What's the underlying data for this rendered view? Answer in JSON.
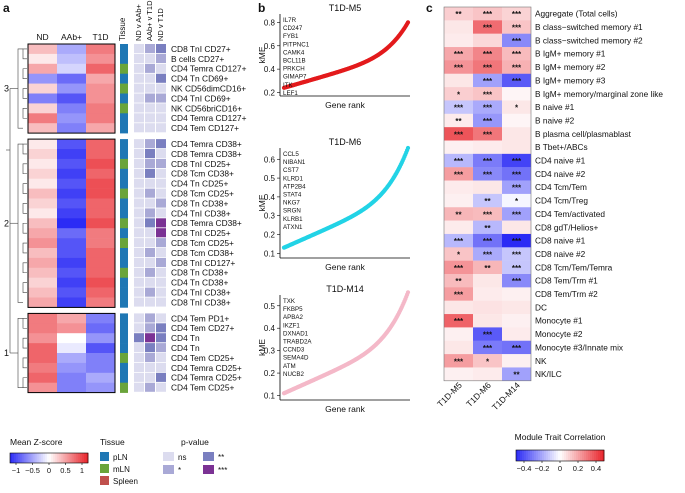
{
  "panel_labels": {
    "a": "a",
    "b": "b",
    "c": "c"
  },
  "colors": {
    "z_low": "#2b2bf5",
    "z_mid": "#ffffff",
    "z_high": "#e8232a",
    "tissue": {
      "pLN": "#1f77b4",
      "mLN": "#6aa43a",
      "Spleen": "#c0504d"
    },
    "pval": {
      "ns": "#dcdcef",
      "*": "#a9a9d6",
      "**": "#7a7fc0",
      "***": "#7b3294"
    },
    "kme": {
      "T1D-M5": "#e31a1c",
      "T1D-M6": "#22d3e6",
      "T1D-M14": "#f4b8c8"
    }
  },
  "panel_a": {
    "col_headers": [
      "ND",
      "AAb+",
      "T1D"
    ],
    "tissue_header": "Tissue",
    "pval_headers": [
      "ND v AAb+",
      "AAb+ v T1D",
      "ND v T1D"
    ],
    "clusters": [
      "3",
      "2",
      "1"
    ],
    "rows": [
      {
        "label": "CD8 TnI CD27+",
        "z": [
          0.3,
          -0.4,
          0.6
        ],
        "tissue": "pLN",
        "p": [
          "ns",
          "*",
          "**"
        ]
      },
      {
        "label": "B cells CD27+",
        "z": [
          0.1,
          -0.3,
          0.5
        ],
        "tissue": "pLN",
        "p": [
          "ns",
          "ns",
          "*"
        ]
      },
      {
        "label": "CD4 Temra CD127+",
        "z": [
          0.4,
          -0.2,
          0.7
        ],
        "tissue": "mLN",
        "p": [
          "ns",
          "*",
          "ns"
        ]
      },
      {
        "label": "CD4 Tn CD69+",
        "z": [
          -0.5,
          -0.7,
          0.4
        ],
        "tissue": "pLN",
        "p": [
          "ns",
          "ns",
          "**"
        ]
      },
      {
        "label": "NK CD56dimCD16+",
        "z": [
          0.2,
          -0.5,
          0.5
        ],
        "tissue": "mLN",
        "p": [
          "ns",
          "ns",
          "ns"
        ]
      },
      {
        "label": "CD4 TnI CD69+",
        "z": [
          -0.6,
          -0.8,
          0.5
        ],
        "tissue": "pLN",
        "p": [
          "ns",
          "*",
          "*"
        ]
      },
      {
        "label": "NK CD56briCD16+",
        "z": [
          0.2,
          -0.6,
          0.6
        ],
        "tissue": "mLN",
        "p": [
          "ns",
          "ns",
          "ns"
        ]
      },
      {
        "label": "CD4 Temra CD127+",
        "z": [
          0.6,
          -0.5,
          0.6
        ],
        "tissue": "pLN",
        "p": [
          "ns",
          "ns",
          "ns"
        ]
      },
      {
        "label": "CD4 Tem CD127+",
        "z": [
          0.3,
          -0.6,
          0.4
        ],
        "tissue": "pLN",
        "p": [
          "ns",
          "ns",
          "ns"
        ]
      },
      {
        "label": "CD4 Temra CD38+",
        "z": [
          0.1,
          -0.8,
          0.7
        ],
        "tissue": "pLN",
        "p": [
          "ns",
          "*",
          "**"
        ]
      },
      {
        "label": "CD8 Temra CD38+",
        "z": [
          0.2,
          -0.9,
          0.7
        ],
        "tissue": "pLN",
        "p": [
          "ns",
          "**",
          "ns"
        ]
      },
      {
        "label": "CD8 TnI CD25+",
        "z": [
          0.1,
          -0.8,
          0.8
        ],
        "tissue": "mLN",
        "p": [
          "ns",
          "*",
          "*"
        ]
      },
      {
        "label": "CD8 Tcm CD38+",
        "z": [
          0.2,
          -0.9,
          0.7
        ],
        "tissue": "pLN",
        "p": [
          "ns",
          "**",
          "ns"
        ]
      },
      {
        "label": "CD4 Tn CD25+",
        "z": [
          0.1,
          -0.8,
          0.8
        ],
        "tissue": "pLN",
        "p": [
          "ns",
          "ns",
          "ns"
        ]
      },
      {
        "label": "CD8 Tcm CD25+",
        "z": [
          0.3,
          -0.9,
          0.8
        ],
        "tissue": "mLN",
        "p": [
          "ns",
          "*",
          "ns"
        ]
      },
      {
        "label": "CD8 Tn CD38+",
        "z": [
          0.2,
          -0.8,
          0.7
        ],
        "tissue": "pLN",
        "p": [
          "ns",
          "ns",
          "*"
        ]
      },
      {
        "label": "CD4 TnI CD38+",
        "z": [
          0.1,
          -0.9,
          0.7
        ],
        "tissue": "pLN",
        "p": [
          "ns",
          "*",
          "ns"
        ]
      },
      {
        "label": "CD8 Temra CD38+",
        "z": [
          0.3,
          -1.0,
          0.8
        ],
        "tissue": "mLN",
        "p": [
          "ns",
          "**",
          "***"
        ]
      },
      {
        "label": "CD8 TnI CD25+",
        "z": [
          0.4,
          -0.7,
          0.6
        ],
        "tissue": "pLN",
        "p": [
          "ns",
          "ns",
          "***"
        ]
      },
      {
        "label": "CD8 Tcm CD25+",
        "z": [
          0.5,
          -0.8,
          0.6
        ],
        "tissue": "mLN",
        "p": [
          "ns",
          "ns",
          "*"
        ]
      },
      {
        "label": "CD8 Tcm CD38+",
        "z": [
          0.3,
          -0.8,
          0.7
        ],
        "tissue": "pLN",
        "p": [
          "ns",
          "*",
          "ns"
        ]
      },
      {
        "label": "CD8 TnI CD127+",
        "z": [
          0.4,
          -0.9,
          0.7
        ],
        "tissue": "pLN",
        "p": [
          "ns",
          "ns",
          "*"
        ]
      },
      {
        "label": "CD8 Tn CD38+",
        "z": [
          0.3,
          -0.8,
          0.7
        ],
        "tissue": "mLN",
        "p": [
          "ns",
          "*",
          "ns"
        ]
      },
      {
        "label": "CD4 Tn CD38+",
        "z": [
          0.2,
          -0.9,
          0.8
        ],
        "tissue": "pLN",
        "p": [
          "ns",
          "ns",
          "ns"
        ]
      },
      {
        "label": "CD4 TnI CD38+",
        "z": [
          0.3,
          -0.8,
          0.7
        ],
        "tissue": "pLN",
        "p": [
          "ns",
          "*",
          "ns"
        ]
      },
      {
        "label": "CD8 TnI CD38+",
        "z": [
          0.4,
          -0.9,
          0.6
        ],
        "tissue": "pLN",
        "p": [
          "ns",
          "ns",
          "ns"
        ]
      },
      {
        "label": "CD4 Tem PD1+",
        "z": [
          0.6,
          0.4,
          -0.6
        ],
        "tissue": "pLN",
        "p": [
          "ns",
          "*",
          "ns"
        ]
      },
      {
        "label": "CD4 Tem CD27+",
        "z": [
          0.6,
          0.5,
          -0.7
        ],
        "tissue": "pLN",
        "p": [
          "ns",
          "*",
          "**"
        ]
      },
      {
        "label": "CD4 Tn",
        "z": [
          0.5,
          0.0,
          -0.5
        ],
        "tissue": "pLN",
        "p": [
          "**",
          "***",
          "**"
        ]
      },
      {
        "label": "CD4 Tn",
        "z": [
          0.7,
          -0.1,
          -0.8
        ],
        "tissue": "pLN",
        "p": [
          "ns",
          "**",
          "*"
        ]
      },
      {
        "label": "CD4 Tem CD25+",
        "z": [
          0.7,
          -0.4,
          -0.6
        ],
        "tissue": "mLN",
        "p": [
          "ns",
          "*",
          "ns"
        ]
      },
      {
        "label": "CD4 Temra CD25+",
        "z": [
          0.6,
          -0.5,
          -0.6
        ],
        "tissue": "pLN",
        "p": [
          "ns",
          "ns",
          "ns"
        ]
      },
      {
        "label": "CD4 Temra CD25+",
        "z": [
          0.7,
          -0.6,
          -0.4
        ],
        "tissue": "pLN",
        "p": [
          "ns",
          "ns",
          "**"
        ]
      },
      {
        "label": "CD4 Tem CD25+",
        "z": [
          0.5,
          -0.6,
          -0.5
        ],
        "tissue": "mLN",
        "p": [
          "ns",
          "*",
          "ns"
        ]
      }
    ],
    "legend_z_title": "Mean Z-score",
    "legend_z_ticks": [
      "−1",
      "−0.5",
      "0",
      "0.5",
      "1"
    ],
    "legend_tissue_title": "Tissue",
    "legend_tissue": [
      "pLN",
      "mLN",
      "Spleen"
    ],
    "legend_p_title": "p-value",
    "legend_p": [
      "ns",
      "**",
      "*",
      "***"
    ]
  },
  "chart_data": [
    {
      "type": "scatter",
      "title": "T1D-M5",
      "xlabel": "Gene rank",
      "ylabel": "kME",
      "ylim": [
        0.2,
        0.8
      ],
      "yticks": [
        "0.2",
        "0.4",
        "0.6",
        "0.8"
      ],
      "n_points": 140,
      "curve": {
        "start": 0.24,
        "end": 0.8
      },
      "genes": [
        "IL7R",
        "CD247",
        "FYB1",
        "PITPNC1",
        "CAMK4",
        "BCL11B",
        "PRKCH",
        "GIMAP7",
        "ITK",
        "LEF1"
      ]
    },
    {
      "type": "scatter",
      "title": "T1D-M6",
      "xlabel": "Gene rank",
      "ylabel": "kME",
      "ylim": [
        0.1,
        0.6
      ],
      "yticks": [
        "0.1",
        "0.2",
        "0.3",
        "0.4",
        "0.5",
        "0.6"
      ],
      "n_points": 140,
      "curve": {
        "start": 0.13,
        "end": 0.66
      },
      "genes": [
        "CCL5",
        "NIBAN1",
        "CST7",
        "KLRD1",
        "ATP2B4",
        "STAT4",
        "NKG7",
        "SRGN",
        "KLRB1",
        "ATXN1"
      ]
    },
    {
      "type": "scatter",
      "title": "T1D-M14",
      "xlabel": "Gene rank",
      "ylabel": "kME",
      "ylim": [
        0.1,
        0.5
      ],
      "yticks": [
        "0.1",
        "0.2",
        "0.3",
        "0.4",
        "0.5"
      ],
      "n_points": 140,
      "curve": {
        "start": 0.11,
        "end": 0.56
      },
      "genes": [
        "TXK",
        "FKBP5",
        "APBA2",
        "IKZF1",
        "DXNAD1",
        "TRABD2A",
        "CCND3",
        "SEMA4D",
        "ATM",
        "NUCB2"
      ]
    },
    {
      "type": "heatmap",
      "title": "Module Trait Correlation",
      "columns": [
        "T1D-M5",
        "T1D-M6",
        "T1D-M14"
      ],
      "colorbar_ticks": [
        "−0.4",
        "−0.2",
        "0",
        "0.2",
        "0.4"
      ],
      "rows": [
        {
          "label": "Aggregate (Total cells)",
          "r": [
            0.1,
            0.12,
            0.09
          ],
          "sig": [
            "**",
            "***",
            "***"
          ]
        },
        {
          "label": "B class−switched memory #1",
          "r": [
            0.05,
            0.3,
            0.12
          ],
          "sig": [
            "",
            "***",
            "***"
          ]
        },
        {
          "label": "B class−switched memory #2",
          "r": [
            0.04,
            0.08,
            -0.25
          ],
          "sig": [
            "",
            "",
            "***"
          ]
        },
        {
          "label": "B IgM+ memory #1",
          "r": [
            0.18,
            0.25,
            0.14
          ],
          "sig": [
            "***",
            "***",
            "***"
          ]
        },
        {
          "label": "B IgM+ memory #2",
          "r": [
            0.22,
            0.28,
            0.16
          ],
          "sig": [
            "***",
            "***",
            "***"
          ]
        },
        {
          "label": "B IgM+ memory #3",
          "r": [
            0.05,
            -0.2,
            -0.35
          ],
          "sig": [
            "",
            "***",
            "***"
          ]
        },
        {
          "label": "B IgM+ memory/marginal zone like",
          "r": [
            0.1,
            0.12,
            0.02
          ],
          "sig": [
            "*",
            "***",
            ""
          ]
        },
        {
          "label": "B naive #1",
          "r": [
            -0.12,
            -0.18,
            0.05
          ],
          "sig": [
            "***",
            "***",
            "*"
          ]
        },
        {
          "label": "B naive #2",
          "r": [
            0.04,
            -0.22,
            0.02
          ],
          "sig": [
            "**",
            "***",
            ""
          ]
        },
        {
          "label": "B plasma cell/plasmablast",
          "r": [
            0.35,
            0.28,
            0.05
          ],
          "sig": [
            "***",
            "***",
            ""
          ]
        },
        {
          "label": "B Tbet+/ABCs",
          "r": [
            0.03,
            0.04,
            0.05
          ],
          "sig": [
            "",
            "",
            ""
          ]
        },
        {
          "label": "CD4 naive #1",
          "r": [
            -0.15,
            -0.28,
            -0.4
          ],
          "sig": [
            "***",
            "***",
            "***"
          ]
        },
        {
          "label": "CD4 naive #2",
          "r": [
            0.2,
            -0.25,
            -0.3
          ],
          "sig": [
            "***",
            "***",
            "***"
          ]
        },
        {
          "label": "CD4 Tcm/Tem",
          "r": [
            0.04,
            0.05,
            -0.2
          ],
          "sig": [
            "",
            "",
            "***"
          ]
        },
        {
          "label": "CD4 Tcm/Treg",
          "r": [
            0.03,
            -0.12,
            -0.02
          ],
          "sig": [
            "",
            "**",
            "*"
          ]
        },
        {
          "label": "CD4 Tem/activated",
          "r": [
            0.15,
            0.14,
            -0.2
          ],
          "sig": [
            "**",
            "***",
            "***"
          ]
        },
        {
          "label": "CD8 gdT/Helios+",
          "r": [
            0.04,
            -0.15,
            0.05
          ],
          "sig": [
            "",
            "**",
            ""
          ]
        },
        {
          "label": "CD8 naive #1",
          "r": [
            -0.15,
            -0.3,
            -0.55
          ],
          "sig": [
            "***",
            "***",
            "***"
          ]
        },
        {
          "label": "CD8 naive #2",
          "r": [
            0.12,
            -0.18,
            -0.12
          ],
          "sig": [
            "*",
            "***",
            "***"
          ]
        },
        {
          "label": "CD8 Tcm/Tem/Temra",
          "r": [
            0.22,
            0.15,
            -0.12
          ],
          "sig": [
            "***",
            "**",
            "***"
          ]
        },
        {
          "label": "CD8 Tem/Trm #1",
          "r": [
            0.14,
            0.05,
            -0.25
          ],
          "sig": [
            "**",
            "",
            "***"
          ]
        },
        {
          "label": "CD8 Tem/Trm #2",
          "r": [
            0.2,
            0.04,
            0.03
          ],
          "sig": [
            "***",
            "",
            ""
          ]
        },
        {
          "label": "DC",
          "r": [
            0.05,
            0.06,
            0.05
          ],
          "sig": [
            "",
            "",
            ""
          ]
        },
        {
          "label": "Monocyte #1",
          "r": [
            0.32,
            0.05,
            0.03
          ],
          "sig": [
            "***",
            "",
            ""
          ]
        },
        {
          "label": "Monocyte #2",
          "r": [
            0.03,
            -0.35,
            0.04
          ],
          "sig": [
            "",
            "***",
            ""
          ]
        },
        {
          "label": "Monocyte #3/Innate mix",
          "r": [
            0.05,
            -0.28,
            -0.3
          ],
          "sig": [
            "",
            "***",
            "***"
          ]
        },
        {
          "label": "NK",
          "r": [
            0.2,
            0.12,
            0.03
          ],
          "sig": [
            "***",
            "*",
            ""
          ]
        },
        {
          "label": "NK/ILC",
          "r": [
            0.03,
            0.04,
            -0.2
          ],
          "sig": [
            "",
            "",
            "**"
          ]
        }
      ]
    }
  ]
}
